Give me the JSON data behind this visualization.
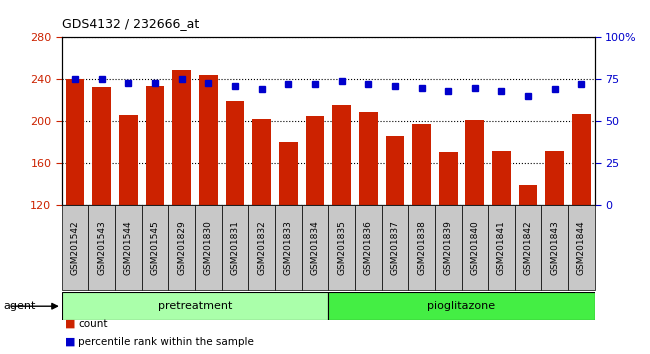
{
  "title": "GDS4132 / 232666_at",
  "samples": [
    "GSM201542",
    "GSM201543",
    "GSM201544",
    "GSM201545",
    "GSM201829",
    "GSM201830",
    "GSM201831",
    "GSM201832",
    "GSM201833",
    "GSM201834",
    "GSM201835",
    "GSM201836",
    "GSM201837",
    "GSM201838",
    "GSM201839",
    "GSM201840",
    "GSM201841",
    "GSM201842",
    "GSM201843",
    "GSM201844"
  ],
  "counts": [
    240,
    233,
    206,
    234,
    249,
    244,
    219,
    202,
    180,
    205,
    215,
    209,
    186,
    197,
    171,
    201,
    172,
    139,
    172,
    207
  ],
  "percentiles": [
    75,
    75,
    73,
    73,
    75,
    73,
    71,
    69,
    72,
    72,
    74,
    72,
    71,
    70,
    68,
    70,
    68,
    65,
    69,
    72
  ],
  "ylim_left": [
    120,
    280
  ],
  "ylim_right": [
    0,
    100
  ],
  "yticks_left": [
    120,
    160,
    200,
    240,
    280
  ],
  "yticks_right": [
    0,
    25,
    50,
    75,
    100
  ],
  "bar_color": "#cc2200",
  "dot_color": "#0000cc",
  "pretreatment_color": "#aaffaa",
  "pioglitazone_color": "#44ee44",
  "tick_bg_color": "#c8c8c8",
  "gridline_color": "black",
  "gridline_style": "dotted",
  "plot_bg_color": "#ffffff",
  "n_pretreatment": 10,
  "n_pioglitazone": 10
}
